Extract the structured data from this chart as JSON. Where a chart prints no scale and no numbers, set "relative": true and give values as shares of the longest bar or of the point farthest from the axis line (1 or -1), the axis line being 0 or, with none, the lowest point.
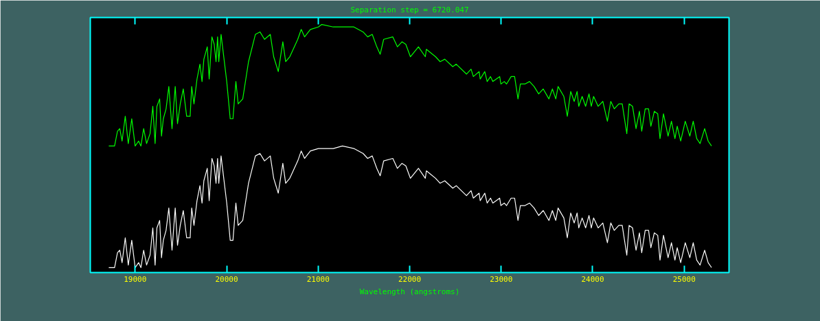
{
  "chart_data": {
    "type": "line",
    "title": "Separation step = 6720.047",
    "xlabel": "Wavelength (angstroms)",
    "relative": true,
    "xlim": [
      18510,
      25490
    ],
    "xticks": [
      19000,
      20000,
      21000,
      22000,
      23000,
      24000,
      25000
    ],
    "series": [
      {
        "color": "#00ff00",
        "x": [
          18712,
          18775,
          18807,
          18832,
          18857,
          18892,
          18925,
          18963,
          19000,
          19038,
          19063,
          19093,
          19125,
          19163,
          19193,
          19218,
          19238,
          19268,
          19288,
          19308,
          19338,
          19368,
          19403,
          19438,
          19463,
          19493,
          19526,
          19563,
          19601,
          19618,
          19643,
          19676,
          19708,
          19731,
          19751,
          19788,
          19809,
          19839,
          19864,
          19884,
          19901,
          19914,
          19939,
          20001,
          20039,
          20069,
          20101,
          20126,
          20176,
          20239,
          20314,
          20364,
          20414,
          20477,
          20514,
          20564,
          20614,
          20645,
          20690,
          20777,
          20815,
          20852,
          20915,
          21002,
          21040,
          21165,
          21265,
          21390,
          21491,
          21541,
          21591,
          21641,
          21678,
          21716,
          21816,
          21866,
          21916,
          21958,
          22008,
          22096,
          22171,
          22183,
          22283,
          22333,
          22384,
          22471,
          22509,
          22621,
          22671,
          22696,
          22759,
          22771,
          22821,
          22847,
          22884,
          22909,
          22984,
          22997,
          23034,
          23059,
          23109,
          23147,
          23184,
          23210,
          23260,
          23310,
          23360,
          23410,
          23460,
          23522,
          23560,
          23597,
          23622,
          23685,
          23723,
          23760,
          23798,
          23830,
          23848,
          23885,
          23923,
          23960,
          23985,
          24010,
          24060,
          24111,
          24161,
          24198,
          24236,
          24286,
          24323,
          24373,
          24398,
          24436,
          24474,
          24511,
          24536,
          24574,
          24611,
          24636,
          24674,
          24711,
          24736,
          24774,
          24824,
          24861,
          24899,
          24924,
          24962,
          25012,
          25062,
          25099,
          25137,
          25174,
          25224,
          25262,
          25299
        ],
        "values": [
          0.51,
          0.51,
          0.57,
          0.58,
          0.53,
          0.63,
          0.52,
          0.62,
          0.51,
          0.53,
          0.51,
          0.58,
          0.52,
          0.56,
          0.67,
          0.52,
          0.67,
          0.7,
          0.55,
          0.62,
          0.66,
          0.75,
          0.58,
          0.75,
          0.6,
          0.68,
          0.74,
          0.63,
          0.63,
          0.75,
          0.68,
          0.78,
          0.84,
          0.77,
          0.86,
          0.91,
          0.78,
          0.95,
          0.92,
          0.85,
          0.95,
          0.85,
          0.96,
          0.77,
          0.62,
          0.62,
          0.77,
          0.68,
          0.7,
          0.85,
          0.96,
          0.97,
          0.94,
          0.96,
          0.87,
          0.81,
          0.93,
          0.85,
          0.87,
          0.94,
          0.98,
          0.95,
          0.98,
          0.99,
          1.0,
          0.99,
          0.99,
          0.99,
          0.97,
          0.95,
          0.96,
          0.91,
          0.88,
          0.94,
          0.95,
          0.91,
          0.93,
          0.92,
          0.87,
          0.91,
          0.87,
          0.9,
          0.87,
          0.85,
          0.86,
          0.83,
          0.84,
          0.8,
          0.82,
          0.79,
          0.81,
          0.78,
          0.81,
          0.77,
          0.79,
          0.77,
          0.79,
          0.76,
          0.77,
          0.76,
          0.79,
          0.79,
          0.7,
          0.76,
          0.76,
          0.77,
          0.75,
          0.72,
          0.74,
          0.7,
          0.74,
          0.7,
          0.75,
          0.71,
          0.63,
          0.73,
          0.69,
          0.73,
          0.67,
          0.71,
          0.67,
          0.72,
          0.67,
          0.71,
          0.67,
          0.69,
          0.61,
          0.69,
          0.66,
          0.68,
          0.68,
          0.56,
          0.68,
          0.67,
          0.58,
          0.65,
          0.57,
          0.66,
          0.66,
          0.59,
          0.65,
          0.64,
          0.54,
          0.64,
          0.55,
          0.61,
          0.54,
          0.59,
          0.53,
          0.61,
          0.55,
          0.61,
          0.54,
          0.52,
          0.58,
          0.53,
          0.51
        ]
      },
      {
        "color": "#ffffff",
        "x": [
          18712,
          18775,
          18807,
          18832,
          18857,
          18892,
          18925,
          18963,
          19000,
          19038,
          19063,
          19093,
          19125,
          19163,
          19193,
          19218,
          19238,
          19268,
          19288,
          19308,
          19338,
          19368,
          19403,
          19438,
          19463,
          19493,
          19526,
          19563,
          19601,
          19618,
          19643,
          19676,
          19708,
          19731,
          19751,
          19788,
          19809,
          19839,
          19864,
          19884,
          19901,
          19914,
          19939,
          20001,
          20039,
          20069,
          20101,
          20126,
          20176,
          20239,
          20314,
          20364,
          20414,
          20477,
          20514,
          20564,
          20614,
          20645,
          20690,
          20777,
          20815,
          20852,
          20915,
          21002,
          21040,
          21165,
          21265,
          21390,
          21491,
          21541,
          21591,
          21641,
          21678,
          21716,
          21816,
          21866,
          21916,
          21958,
          22008,
          22096,
          22171,
          22183,
          22283,
          22333,
          22384,
          22471,
          22509,
          22621,
          22671,
          22696,
          22759,
          22771,
          22821,
          22847,
          22884,
          22909,
          22984,
          22997,
          23034,
          23059,
          23109,
          23147,
          23184,
          23210,
          23260,
          23310,
          23360,
          23410,
          23460,
          23522,
          23560,
          23597,
          23622,
          23685,
          23723,
          23760,
          23798,
          23830,
          23848,
          23885,
          23923,
          23960,
          23985,
          24010,
          24060,
          24111,
          24161,
          24198,
          24236,
          24286,
          24323,
          24373,
          24398,
          24436,
          24474,
          24511,
          24536,
          24574,
          24611,
          24636,
          24674,
          24711,
          24736,
          24774,
          24824,
          24861,
          24899,
          24924,
          24962,
          25012,
          25062,
          25099,
          25137,
          25174,
          25224,
          25262,
          25299
        ],
        "values": [
          0.02,
          0.02,
          0.08,
          0.09,
          0.04,
          0.14,
          0.03,
          0.13,
          0.02,
          0.04,
          0.02,
          0.09,
          0.03,
          0.07,
          0.18,
          0.03,
          0.18,
          0.21,
          0.06,
          0.13,
          0.17,
          0.26,
          0.09,
          0.26,
          0.11,
          0.19,
          0.25,
          0.14,
          0.14,
          0.26,
          0.19,
          0.29,
          0.35,
          0.28,
          0.37,
          0.42,
          0.29,
          0.46,
          0.43,
          0.36,
          0.46,
          0.36,
          0.47,
          0.28,
          0.13,
          0.13,
          0.28,
          0.19,
          0.21,
          0.36,
          0.47,
          0.48,
          0.45,
          0.47,
          0.38,
          0.32,
          0.44,
          0.36,
          0.38,
          0.45,
          0.49,
          0.46,
          0.49,
          0.5,
          0.5,
          0.5,
          0.51,
          0.5,
          0.48,
          0.46,
          0.47,
          0.42,
          0.39,
          0.45,
          0.46,
          0.42,
          0.44,
          0.43,
          0.38,
          0.42,
          0.38,
          0.41,
          0.38,
          0.36,
          0.37,
          0.34,
          0.35,
          0.31,
          0.33,
          0.3,
          0.32,
          0.29,
          0.32,
          0.28,
          0.3,
          0.28,
          0.3,
          0.27,
          0.28,
          0.27,
          0.3,
          0.3,
          0.21,
          0.27,
          0.27,
          0.28,
          0.26,
          0.23,
          0.25,
          0.21,
          0.25,
          0.21,
          0.26,
          0.22,
          0.14,
          0.24,
          0.2,
          0.24,
          0.18,
          0.22,
          0.18,
          0.23,
          0.18,
          0.22,
          0.18,
          0.2,
          0.12,
          0.2,
          0.17,
          0.19,
          0.19,
          0.07,
          0.19,
          0.18,
          0.09,
          0.16,
          0.08,
          0.17,
          0.17,
          0.1,
          0.16,
          0.15,
          0.05,
          0.15,
          0.06,
          0.12,
          0.05,
          0.1,
          0.04,
          0.12,
          0.06,
          0.12,
          0.05,
          0.03,
          0.09,
          0.04,
          0.02
        ]
      }
    ]
  }
}
